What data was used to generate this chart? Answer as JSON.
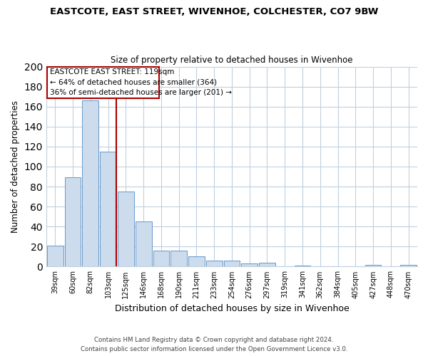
{
  "title": "EASTCOTE, EAST STREET, WIVENHOE, COLCHESTER, CO7 9BW",
  "subtitle": "Size of property relative to detached houses in Wivenhoe",
  "xlabel": "Distribution of detached houses by size in Wivenhoe",
  "ylabel": "Number of detached properties",
  "bar_labels": [
    "39sqm",
    "60sqm",
    "82sqm",
    "103sqm",
    "125sqm",
    "146sqm",
    "168sqm",
    "190sqm",
    "211sqm",
    "233sqm",
    "254sqm",
    "276sqm",
    "297sqm",
    "319sqm",
    "341sqm",
    "362sqm",
    "384sqm",
    "405sqm",
    "427sqm",
    "448sqm",
    "470sqm"
  ],
  "bar_values": [
    21,
    89,
    166,
    115,
    75,
    45,
    16,
    16,
    10,
    6,
    6,
    3,
    4,
    0,
    1,
    0,
    0,
    0,
    2,
    0,
    2
  ],
  "bar_color": "#ccdcec",
  "bar_edgecolor": "#6699cc",
  "ylim": [
    0,
    200
  ],
  "yticks": [
    0,
    20,
    40,
    60,
    80,
    100,
    120,
    140,
    160,
    180,
    200
  ],
  "vline_color": "#aa0000",
  "annotation_box_text": "EASTCOTE EAST STREET: 119sqm\n← 64% of detached houses are smaller (364)\n36% of semi-detached houses are larger (201) →",
  "footer_line1": "Contains HM Land Registry data © Crown copyright and database right 2024.",
  "footer_line2": "Contains public sector information licensed under the Open Government Licence v3.0.",
  "background_color": "#ffffff",
  "grid_color": "#c0d0e0"
}
